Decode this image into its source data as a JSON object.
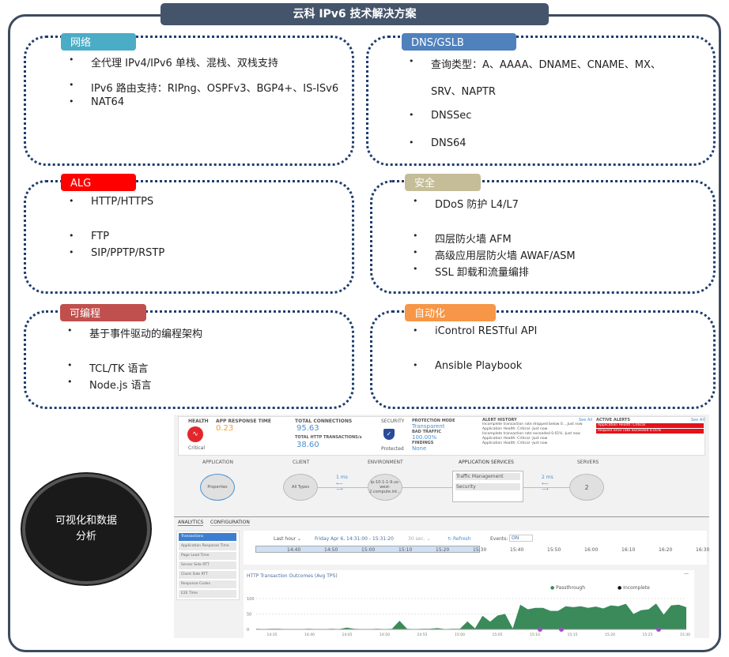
{
  "title": "云科 IPv6 技术解决方案",
  "sections": [
    {
      "label": "网络",
      "color": "#4bacc6",
      "items": [
        "全代理 IPv4/IPv6 单栈、混栈、双栈支持",
        "IPv6 路由支持：RIPng、OSPFv3、BGP4+、IS-ISv6",
        "NAT64"
      ]
    },
    {
      "label": "DNS/GSLB",
      "color": "#4f81bd",
      "items": [
        "查询类型：A、AAAA、DNAME、CNAME、MX、",
        "SRV、NAPTR",
        "DNSSec",
        "DNS64"
      ]
    },
    {
      "label": "ALG",
      "color": "#ff0000",
      "items": [
        "HTTP/HTTPS",
        "FTP",
        "SIP/PPTP/RSTP"
      ]
    },
    {
      "label": "安全",
      "color": "#c4bd97",
      "items": [
        "DDoS 防护 L4/L7",
        "四层防火墙 AFM",
        "高级应用层防火墙 AWAF/ASM",
        "SSL 卸载和流量编排"
      ]
    },
    {
      "label": "可编程",
      "color": "#c0504d",
      "items": [
        "基于事件驱动的编程架构",
        "TCL/TK 语言",
        "Node.js 语言"
      ]
    },
    {
      "label": "自动化",
      "color": "#f79646",
      "items": [
        "iControl RESTful API",
        "Ansible Playbook"
      ]
    }
  ],
  "circle": "可视化和数据分析",
  "dashboard": {
    "health": {
      "label": "HEALTH",
      "status": "Critical"
    },
    "app_response": {
      "label": "APP RESPONSE TIME",
      "value": "0.23"
    },
    "connections": {
      "label": "TOTAL CONNECTIONS",
      "value": "95.63",
      "http_label": "TOTAL HTTP TRANSACTIONS/s",
      "http_value": "38.60"
    },
    "security": {
      "label": "SECURITY",
      "status": "Protected"
    },
    "protection": {
      "mode_label": "PROTECTION MODE",
      "mode": "Transparent",
      "bad_label": "BAD TRAFFIC",
      "bad": "100.00%",
      "findings_label": "FINDINGS",
      "findings": "None"
    },
    "alert_history": {
      "label": "ALERT HISTORY",
      "see_all": "See All",
      "items": [
        "Incomplete transaction rate dropped below 0....Just now",
        "Application Health: Critical -Just now",
        "Incomplete transaction rate exceeded 0.01% -Just now",
        "Application Health: Critical -Just now",
        "Application Health: Critical -Just now"
      ]
    },
    "active_alerts": {
      "label": "ACTIVE ALERTS",
      "see_all": "See All",
      "items": [
        "Application Health: Critical",
        "Request error rate exceeded 0.05%"
      ]
    },
    "topology": {
      "application": "APPLICATION",
      "client": "CLIENT",
      "environment": "ENVIRONMENT",
      "app_services": "APPLICATION SERVICES",
      "servers": "SERVERS",
      "properties": "Properties",
      "all_types": "All Types",
      "env_node": "ip-10-1-1-9.us-west-2.compute.int...",
      "client_latency": "1 ms",
      "server_latency": "2 ms",
      "traffic_mgmt": "Traffic Management",
      "security": "Security",
      "server_count": "2"
    },
    "tabs": [
      "ANALYTICS",
      "CONFIGURATION"
    ],
    "nav": [
      "Transactions",
      "Application Response Time",
      "Page Load Time",
      "Server Side RTT",
      "Client Side RTT",
      "Response Codes",
      "E2E Time"
    ],
    "toolbar": {
      "range": "Last hour ⌄",
      "dates": "Friday Apr 6, 14:31:00 - 15:31:20",
      "interval": "30 sec. ⌄",
      "refresh": "Refresh",
      "events_label": "Events:",
      "events": "ON"
    },
    "timeline": [
      "14:40",
      "14:50",
      "15:00",
      "15:10",
      "15:20",
      "15:30",
      "15:40",
      "15:50",
      "16:00",
      "16:10",
      "16:20",
      "16:30"
    ]
  },
  "chart_data": {
    "type": "area",
    "title": "HTTP Transaction Outcomes (Avg TPS)",
    "legend": [
      "Passthrough",
      "Incomplete"
    ],
    "colors": {
      "Passthrough": "#3a8a5a",
      "Incomplete": "#111111"
    },
    "ylim": [
      0,
      100
    ],
    "yticks": [
      "0",
      "50",
      "100"
    ],
    "xticks": [
      "14:35",
      "14:40",
      "14:45",
      "14:50",
      "14:55",
      "15:00",
      "15:05",
      "15:10",
      "15:15",
      "15:20",
      "15:25",
      "15:30"
    ],
    "series": [
      {
        "name": "Passthrough",
        "values": [
          2,
          1,
          2,
          2,
          1,
          1,
          1,
          2,
          1,
          1,
          2,
          1,
          6,
          2,
          1,
          1,
          2,
          1,
          2,
          28,
          2,
          1,
          2,
          2,
          4,
          1,
          2,
          2,
          26,
          3,
          44,
          25,
          45,
          50,
          3,
          80,
          65,
          70,
          70,
          60,
          60,
          75,
          72,
          75,
          70,
          74,
          68,
          78,
          75,
          83,
          50,
          62,
          65,
          84,
          48,
          78,
          80,
          72
        ]
      }
    ]
  }
}
